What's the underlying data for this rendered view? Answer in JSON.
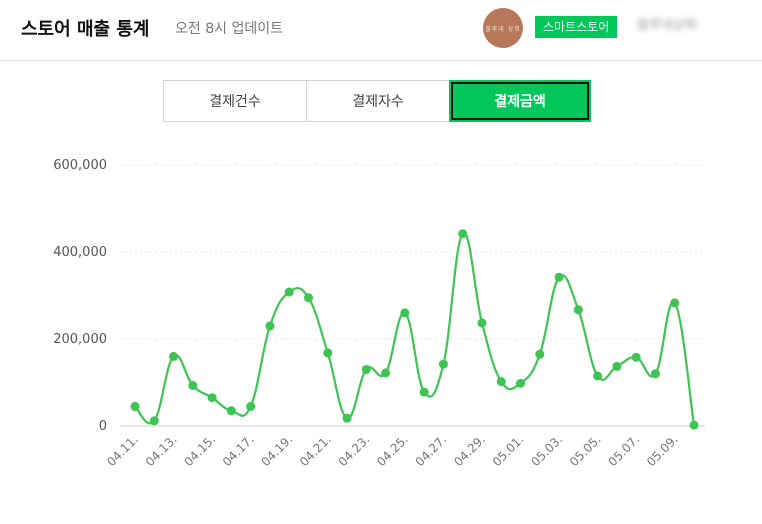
{
  "header": {
    "title": "스토어 매출 통계",
    "subtitle": "오전 8시 업데이트",
    "avatar_text": "블루네 상회",
    "store_badge": "스마트스토어",
    "store_name": "블루네상회"
  },
  "tabs": [
    {
      "label": "결제건수",
      "active": false
    },
    {
      "label": "결제자수",
      "active": false
    },
    {
      "label": "결제금액",
      "active": true
    }
  ],
  "colors": {
    "accent": "#03c75a",
    "line": "#3dc452"
  },
  "chart_data": {
    "type": "line",
    "ylim": [
      0,
      600000
    ],
    "yticks": [
      "600,000",
      "400,000",
      "200,000",
      "0"
    ],
    "ytick_values": [
      600000,
      400000,
      200000,
      0
    ],
    "xtick_labels": [
      "04.11.",
      "04.13.",
      "04.15.",
      "04.17.",
      "04.19.",
      "04.21.",
      "04.23.",
      "04.25.",
      "04.27.",
      "04.29.",
      "05.01.",
      "05.03.",
      "05.05.",
      "05.07.",
      "05.09."
    ],
    "x": [
      "04.11.",
      "04.12.",
      "04.13.",
      "04.14.",
      "04.15.",
      "04.16.",
      "04.17.",
      "04.18.",
      "04.19.",
      "04.20.",
      "04.21.",
      "04.22.",
      "04.23.",
      "04.24.",
      "04.25.",
      "04.26.",
      "04.27.",
      "04.28.",
      "04.29.",
      "04.30.",
      "05.01.",
      "05.02.",
      "05.03.",
      "05.04.",
      "05.05.",
      "05.06.",
      "05.07.",
      "05.08.",
      "05.09.",
      "05.10."
    ],
    "values": [
      45000,
      12000,
      160000,
      93000,
      65000,
      35000,
      45000,
      230000,
      308000,
      295000,
      168000,
      18000,
      130000,
      122000,
      260000,
      78000,
      142000,
      442000,
      237000,
      102000,
      98000,
      165000,
      342000,
      267000,
      115000,
      137000,
      158000,
      120000,
      283000,
      2000
    ],
    "grid": true
  }
}
